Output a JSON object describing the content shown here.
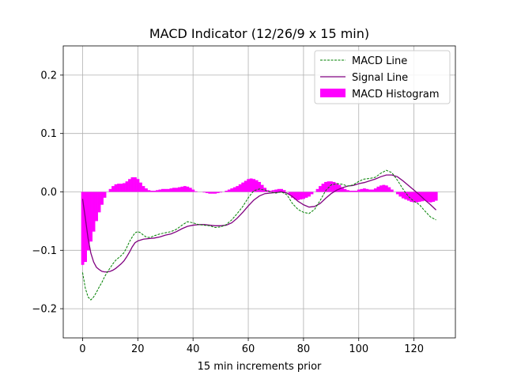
{
  "chart_data": {
    "type": "line",
    "title": "MACD Indicator (12/26/9 x 15 min)",
    "xlabel": "15 min increments prior",
    "ylabel": "",
    "xlim": [
      -7,
      135
    ],
    "ylim": [
      -0.25,
      0.25
    ],
    "xticks": [
      0,
      20,
      40,
      60,
      80,
      100,
      120
    ],
    "xtick_labels": [
      "0",
      "20",
      "40",
      "60",
      "80",
      "100",
      "120"
    ],
    "yticks": [
      -0.2,
      -0.1,
      0.0,
      0.1,
      0.2
    ],
    "ytick_labels": [
      "−0.2",
      "−0.1",
      "0.0",
      "0.1",
      "0.2"
    ],
    "grid": true,
    "legend_placement": "top-right",
    "colors": {
      "macd": "#008000",
      "signal": "#800080",
      "histogram": "#ff00ff",
      "grid": "#b0b0b0"
    },
    "series": [
      {
        "name": "MACD Line",
        "style": "dashed",
        "points": [
          [
            0,
            -0.138
          ],
          [
            1,
            -0.165
          ],
          [
            2,
            -0.18
          ],
          [
            3,
            -0.185
          ],
          [
            4,
            -0.18
          ],
          [
            5,
            -0.172
          ],
          [
            6,
            -0.163
          ],
          [
            7,
            -0.155
          ],
          [
            8,
            -0.145
          ],
          [
            9,
            -0.137
          ],
          [
            10,
            -0.13
          ],
          [
            11,
            -0.123
          ],
          [
            12,
            -0.117
          ],
          [
            13,
            -0.113
          ],
          [
            14,
            -0.109
          ],
          [
            15,
            -0.104
          ],
          [
            16,
            -0.095
          ],
          [
            17,
            -0.085
          ],
          [
            18,
            -0.077
          ],
          [
            19,
            -0.07
          ],
          [
            20,
            -0.068
          ],
          [
            21,
            -0.07
          ],
          [
            22,
            -0.074
          ],
          [
            23,
            -0.077
          ],
          [
            24,
            -0.078
          ],
          [
            25,
            -0.077
          ],
          [
            26,
            -0.075
          ],
          [
            28,
            -0.072
          ],
          [
            30,
            -0.07
          ],
          [
            32,
            -0.068
          ],
          [
            34,
            -0.064
          ],
          [
            36,
            -0.057
          ],
          [
            38,
            -0.051
          ],
          [
            40,
            -0.053
          ],
          [
            42,
            -0.056
          ],
          [
            44,
            -0.057
          ],
          [
            46,
            -0.058
          ],
          [
            48,
            -0.061
          ],
          [
            50,
            -0.06
          ],
          [
            52,
            -0.056
          ],
          [
            54,
            -0.048
          ],
          [
            56,
            -0.037
          ],
          [
            58,
            -0.025
          ],
          [
            60,
            -0.01
          ],
          [
            62,
            0.002
          ],
          [
            64,
            0.005
          ],
          [
            66,
            0.003
          ],
          [
            68,
            0.0
          ],
          [
            70,
            -0.002
          ],
          [
            72,
            0.0
          ],
          [
            74,
            -0.005
          ],
          [
            76,
            -0.02
          ],
          [
            78,
            -0.03
          ],
          [
            80,
            -0.035
          ],
          [
            82,
            -0.037
          ],
          [
            84,
            -0.03
          ],
          [
            86,
            -0.015
          ],
          [
            88,
            0.002
          ],
          [
            90,
            0.012
          ],
          [
            92,
            0.014
          ],
          [
            94,
            0.013
          ],
          [
            96,
            0.01
          ],
          [
            98,
            0.012
          ],
          [
            100,
            0.018
          ],
          [
            102,
            0.022
          ],
          [
            104,
            0.023
          ],
          [
            106,
            0.025
          ],
          [
            108,
            0.032
          ],
          [
            110,
            0.037
          ],
          [
            112,
            0.033
          ],
          [
            114,
            0.02
          ],
          [
            116,
            0.005
          ],
          [
            118,
            -0.008
          ],
          [
            120,
            -0.016
          ],
          [
            122,
            -0.022
          ],
          [
            124,
            -0.033
          ],
          [
            126,
            -0.043
          ],
          [
            128,
            -0.048
          ]
        ]
      },
      {
        "name": "Signal Line",
        "style": "solid",
        "points": [
          [
            0,
            -0.012
          ],
          [
            1,
            -0.045
          ],
          [
            2,
            -0.08
          ],
          [
            3,
            -0.105
          ],
          [
            4,
            -0.12
          ],
          [
            5,
            -0.129
          ],
          [
            6,
            -0.133
          ],
          [
            7,
            -0.136
          ],
          [
            8,
            -0.137
          ],
          [
            9,
            -0.137
          ],
          [
            10,
            -0.136
          ],
          [
            11,
            -0.134
          ],
          [
            12,
            -0.131
          ],
          [
            13,
            -0.127
          ],
          [
            14,
            -0.123
          ],
          [
            15,
            -0.118
          ],
          [
            16,
            -0.111
          ],
          [
            17,
            -0.103
          ],
          [
            18,
            -0.094
          ],
          [
            19,
            -0.087
          ],
          [
            20,
            -0.084
          ],
          [
            22,
            -0.081
          ],
          [
            24,
            -0.08
          ],
          [
            26,
            -0.079
          ],
          [
            28,
            -0.077
          ],
          [
            30,
            -0.074
          ],
          [
            32,
            -0.072
          ],
          [
            34,
            -0.068
          ],
          [
            36,
            -0.063
          ],
          [
            38,
            -0.059
          ],
          [
            40,
            -0.057
          ],
          [
            42,
            -0.056
          ],
          [
            44,
            -0.056
          ],
          [
            46,
            -0.057
          ],
          [
            48,
            -0.058
          ],
          [
            50,
            -0.058
          ],
          [
            52,
            -0.057
          ],
          [
            54,
            -0.053
          ],
          [
            56,
            -0.045
          ],
          [
            58,
            -0.035
          ],
          [
            60,
            -0.024
          ],
          [
            62,
            -0.014
          ],
          [
            64,
            -0.007
          ],
          [
            66,
            -0.003
          ],
          [
            68,
            -0.002
          ],
          [
            70,
            -0.001
          ],
          [
            72,
            0.0
          ],
          [
            74,
            -0.002
          ],
          [
            76,
            -0.008
          ],
          [
            78,
            -0.016
          ],
          [
            80,
            -0.022
          ],
          [
            82,
            -0.026
          ],
          [
            84,
            -0.025
          ],
          [
            86,
            -0.02
          ],
          [
            88,
            -0.011
          ],
          [
            90,
            -0.003
          ],
          [
            92,
            0.003
          ],
          [
            94,
            0.007
          ],
          [
            96,
            0.01
          ],
          [
            98,
            0.011
          ],
          [
            100,
            0.014
          ],
          [
            102,
            0.016
          ],
          [
            104,
            0.019
          ],
          [
            106,
            0.022
          ],
          [
            108,
            0.026
          ],
          [
            110,
            0.029
          ],
          [
            112,
            0.029
          ],
          [
            114,
            0.026
          ],
          [
            116,
            0.019
          ],
          [
            118,
            0.011
          ],
          [
            120,
            0.003
          ],
          [
            122,
            -0.005
          ],
          [
            124,
            -0.014
          ],
          [
            126,
            -0.022
          ],
          [
            128,
            -0.031
          ]
        ]
      },
      {
        "name": "MACD Histogram",
        "style": "bar",
        "points": [
          [
            0,
            -0.125
          ],
          [
            1,
            -0.12
          ],
          [
            2,
            -0.1
          ],
          [
            3,
            -0.085
          ],
          [
            4,
            -0.068
          ],
          [
            5,
            -0.05
          ],
          [
            6,
            -0.035
          ],
          [
            7,
            -0.022
          ],
          [
            8,
            -0.01
          ],
          [
            9,
            0.0
          ],
          [
            10,
            0.005
          ],
          [
            11,
            0.01
          ],
          [
            12,
            0.013
          ],
          [
            13,
            0.014
          ],
          [
            14,
            0.014
          ],
          [
            15,
            0.015
          ],
          [
            16,
            0.018
          ],
          [
            17,
            0.022
          ],
          [
            18,
            0.025
          ],
          [
            19,
            0.025
          ],
          [
            20,
            0.022
          ],
          [
            21,
            0.016
          ],
          [
            22,
            0.01
          ],
          [
            23,
            0.006
          ],
          [
            24,
            0.003
          ],
          [
            25,
            0.002
          ],
          [
            26,
            0.002
          ],
          [
            27,
            0.003
          ],
          [
            28,
            0.004
          ],
          [
            29,
            0.005
          ],
          [
            30,
            0.005
          ],
          [
            31,
            0.005
          ],
          [
            32,
            0.006
          ],
          [
            33,
            0.007
          ],
          [
            34,
            0.007
          ],
          [
            35,
            0.008
          ],
          [
            36,
            0.009
          ],
          [
            37,
            0.01
          ],
          [
            38,
            0.009
          ],
          [
            39,
            0.007
          ],
          [
            40,
            0.004
          ],
          [
            41,
            0.001
          ],
          [
            42,
            0.0
          ],
          [
            43,
            0.0
          ],
          [
            44,
            -0.001
          ],
          [
            45,
            -0.002
          ],
          [
            46,
            -0.003
          ],
          [
            47,
            -0.003
          ],
          [
            48,
            -0.003
          ],
          [
            49,
            -0.002
          ],
          [
            50,
            -0.001
          ],
          [
            51,
            0.0
          ],
          [
            52,
            0.002
          ],
          [
            53,
            0.004
          ],
          [
            54,
            0.006
          ],
          [
            55,
            0.008
          ],
          [
            56,
            0.01
          ],
          [
            57,
            0.013
          ],
          [
            58,
            0.016
          ],
          [
            59,
            0.019
          ],
          [
            60,
            0.022
          ],
          [
            61,
            0.023
          ],
          [
            62,
            0.022
          ],
          [
            63,
            0.02
          ],
          [
            64,
            0.017
          ],
          [
            65,
            0.012
          ],
          [
            66,
            0.007
          ],
          [
            67,
            0.003
          ],
          [
            68,
            0.002
          ],
          [
            69,
            0.003
          ],
          [
            70,
            0.004
          ],
          [
            71,
            0.005
          ],
          [
            72,
            0.005
          ],
          [
            73,
            0.003
          ],
          [
            74,
            0.0
          ],
          [
            75,
            -0.005
          ],
          [
            76,
            -0.01
          ],
          [
            77,
            -0.013
          ],
          [
            78,
            -0.014
          ],
          [
            79,
            -0.013
          ],
          [
            80,
            -0.012
          ],
          [
            81,
            -0.01
          ],
          [
            82,
            -0.008
          ],
          [
            83,
            -0.004
          ],
          [
            84,
            0.0
          ],
          [
            85,
            0.005
          ],
          [
            86,
            0.01
          ],
          [
            87,
            0.014
          ],
          [
            88,
            0.017
          ],
          [
            89,
            0.018
          ],
          [
            90,
            0.018
          ],
          [
            91,
            0.017
          ],
          [
            92,
            0.015
          ],
          [
            93,
            0.012
          ],
          [
            94,
            0.008
          ],
          [
            95,
            0.005
          ],
          [
            96,
            0.003
          ],
          [
            97,
            0.002
          ],
          [
            98,
            0.002
          ],
          [
            99,
            0.002
          ],
          [
            100,
            0.004
          ],
          [
            101,
            0.005
          ],
          [
            102,
            0.006
          ],
          [
            103,
            0.005
          ],
          [
            104,
            0.004
          ],
          [
            105,
            0.004
          ],
          [
            106,
            0.006
          ],
          [
            107,
            0.009
          ],
          [
            108,
            0.011
          ],
          [
            109,
            0.012
          ],
          [
            110,
            0.011
          ],
          [
            111,
            0.008
          ],
          [
            112,
            0.004
          ],
          [
            113,
            0.0
          ],
          [
            114,
            -0.004
          ],
          [
            115,
            -0.008
          ],
          [
            116,
            -0.011
          ],
          [
            117,
            -0.013
          ],
          [
            118,
            -0.015
          ],
          [
            119,
            -0.017
          ],
          [
            120,
            -0.018
          ],
          [
            121,
            -0.018
          ],
          [
            122,
            -0.017
          ],
          [
            123,
            -0.016
          ],
          [
            124,
            -0.015
          ],
          [
            125,
            -0.017
          ],
          [
            126,
            -0.018
          ],
          [
            127,
            -0.017
          ],
          [
            128,
            -0.015
          ]
        ]
      }
    ]
  }
}
